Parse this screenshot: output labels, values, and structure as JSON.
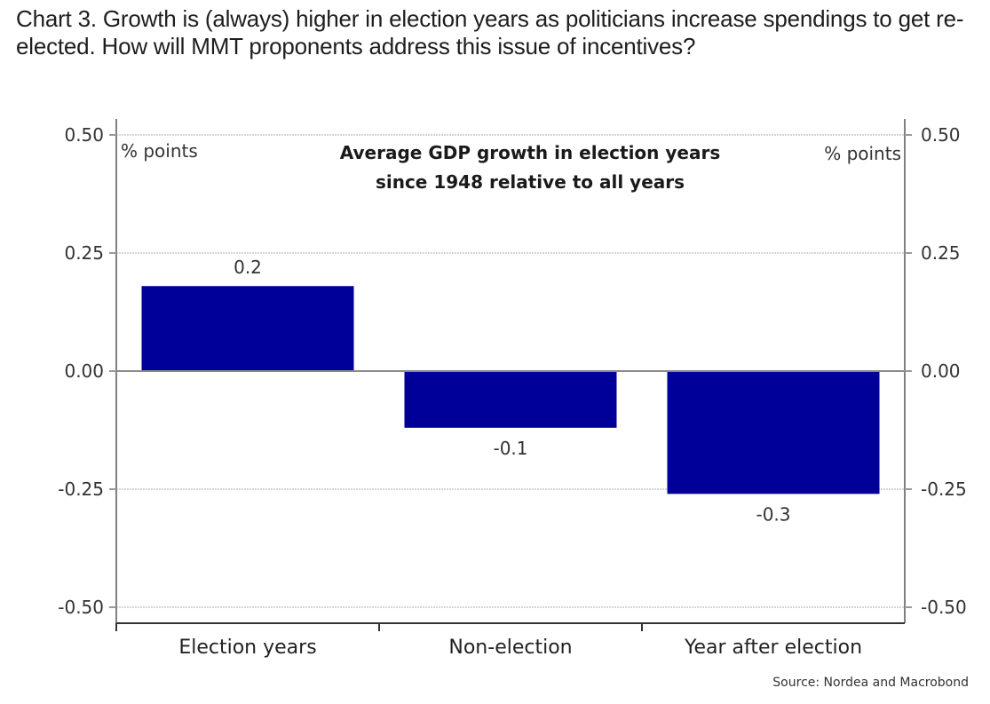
{
  "headline": "Chart 3. Growth is (always) higher in election years as politicians increase spendings to get re-elected. How will MMT proponents address this issue of incentives?",
  "chart_data": {
    "type": "bar",
    "title_lines": [
      "Average GDP growth in election years",
      "since 1948 relative to all years"
    ],
    "categories": [
      "Election years",
      "Non-election",
      "Year after election"
    ],
    "values": [
      0.18,
      -0.12,
      -0.26
    ],
    "data_labels": [
      "0.2",
      "-0.1",
      "-0.3"
    ],
    "bar_color": "#000099",
    "ylabel_left": "% points",
    "ylabel_right": "% points",
    "ylim": [
      -0.5,
      0.5
    ],
    "yticks": [
      0.5,
      0.25,
      0.0,
      -0.25,
      -0.5
    ],
    "ytick_labels": [
      "0.50",
      "0.25",
      "0.00",
      "-0.25",
      "-0.50"
    ],
    "grid": true,
    "dual_axis": true,
    "source": "Source: Nordea and Macrobond"
  }
}
